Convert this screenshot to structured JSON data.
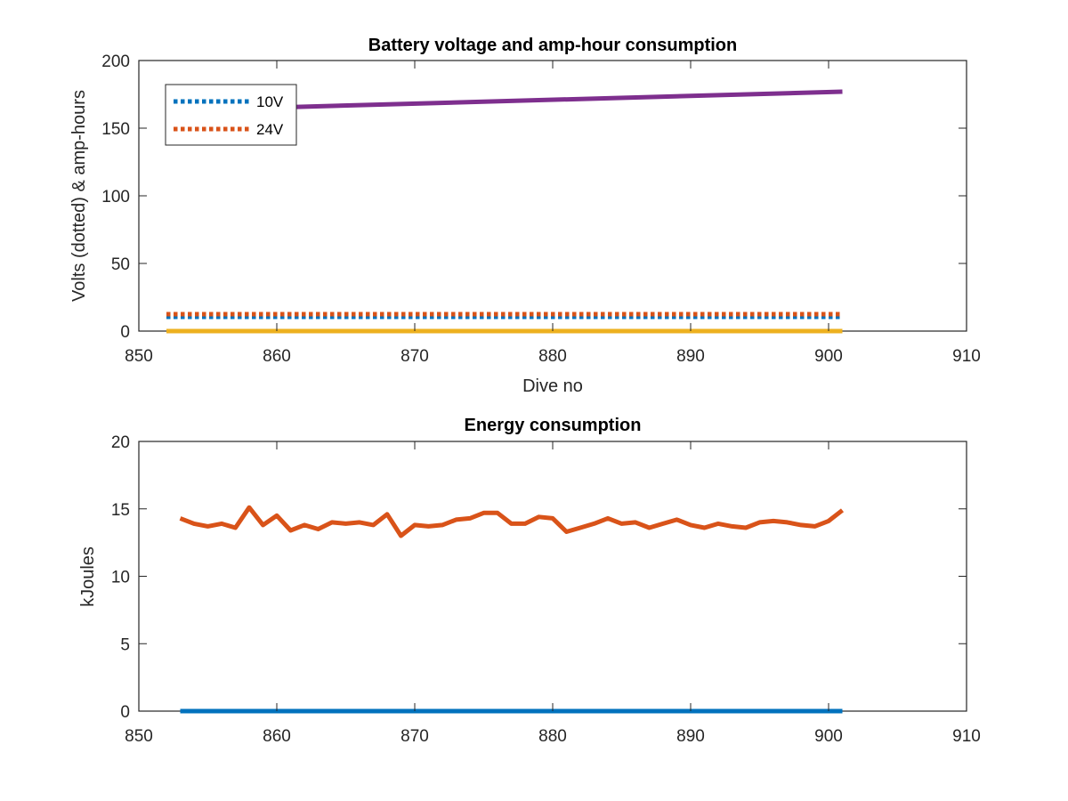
{
  "chart_data": [
    {
      "type": "line",
      "title": "Battery voltage and amp-hour consumption",
      "xlabel": "Dive no",
      "ylabel": "Volts (dotted) & amp-hours",
      "xlim": [
        850,
        910
      ],
      "ylim": [
        0,
        200
      ],
      "xticks": [
        850,
        860,
        870,
        880,
        890,
        900,
        910
      ],
      "yticks": [
        0,
        50,
        100,
        150,
        200
      ],
      "grid": false,
      "legend_position": "top-left",
      "series": [
        {
          "name": "10V",
          "style": "dotted",
          "color": "#0072BD",
          "x": [
            852,
            901
          ],
          "y": [
            10.5,
            10.5
          ]
        },
        {
          "name": "24V",
          "style": "dotted",
          "color": "#D95319",
          "x": [
            852,
            901
          ],
          "y": [
            12.5,
            12.5
          ]
        },
        {
          "style": "solid",
          "color": "#7E2F8E",
          "x": [
            852,
            901
          ],
          "y": [
            163,
            177
          ]
        },
        {
          "style": "solid",
          "color": "#EDB120",
          "x": [
            852,
            901
          ],
          "y": [
            0,
            0
          ]
        }
      ]
    },
    {
      "type": "line",
      "title": "Energy consumption",
      "xlabel": "",
      "ylabel": "kJoules",
      "xlim": [
        850,
        910
      ],
      "ylim": [
        0,
        20
      ],
      "xticks": [
        850,
        860,
        870,
        880,
        890,
        900,
        910
      ],
      "yticks": [
        0,
        5,
        10,
        15,
        20
      ],
      "grid": false,
      "series": [
        {
          "style": "solid",
          "color": "#0072BD",
          "x": [
            853,
            901
          ],
          "y": [
            0,
            0
          ]
        },
        {
          "style": "solid",
          "color": "#D95319",
          "x": [
            853,
            854,
            855,
            856,
            857,
            858,
            859,
            860,
            861,
            862,
            863,
            864,
            865,
            866,
            867,
            868,
            869,
            870,
            871,
            872,
            873,
            874,
            875,
            876,
            877,
            878,
            879,
            880,
            881,
            882,
            883,
            884,
            885,
            886,
            887,
            888,
            889,
            890,
            891,
            892,
            893,
            894,
            895,
            896,
            897,
            898,
            899,
            900,
            901
          ],
          "y": [
            14.3,
            13.9,
            13.7,
            13.9,
            13.6,
            15.1,
            13.8,
            14.5,
            13.4,
            13.8,
            13.5,
            14.0,
            13.9,
            14.0,
            13.8,
            14.6,
            13.0,
            13.8,
            13.7,
            13.8,
            14.2,
            14.3,
            14.7,
            14.7,
            13.9,
            13.9,
            14.4,
            14.3,
            13.3,
            13.6,
            13.9,
            14.3,
            13.9,
            14.0,
            13.6,
            13.9,
            14.2,
            13.8,
            13.6,
            13.9,
            13.7,
            13.6,
            14.0,
            14.1,
            14.0,
            13.8,
            13.7,
            14.1,
            14.9
          ]
        }
      ]
    }
  ]
}
